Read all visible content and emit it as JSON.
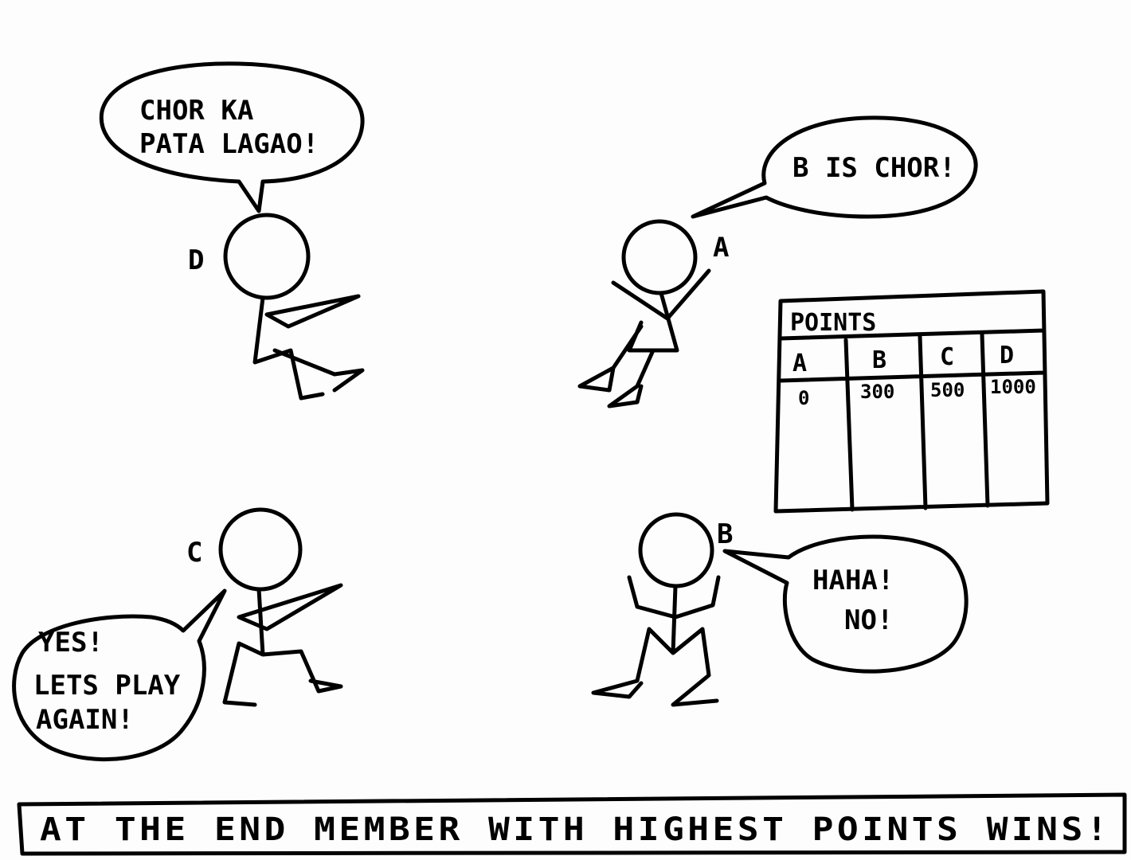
{
  "characters": {
    "d": {
      "label": "D",
      "speech": [
        "CHOR KA",
        "PATA LAGAO!"
      ]
    },
    "a": {
      "label": "A",
      "speech": [
        "B IS CHOR!"
      ]
    },
    "c": {
      "label": "C",
      "speech": [
        "YES!",
        "LETS PLAY",
        "AGAIN!"
      ]
    },
    "b": {
      "label": "B",
      "speech": [
        "HAHA!",
        "NO!"
      ]
    }
  },
  "points_table": {
    "title": "POINTS",
    "columns": [
      "A",
      "B",
      "C",
      "D"
    ],
    "values": [
      "0",
      "300",
      "500",
      "1000"
    ]
  },
  "caption": "AT THE END MEMBER WITH HIGHEST POINTS WINS!"
}
